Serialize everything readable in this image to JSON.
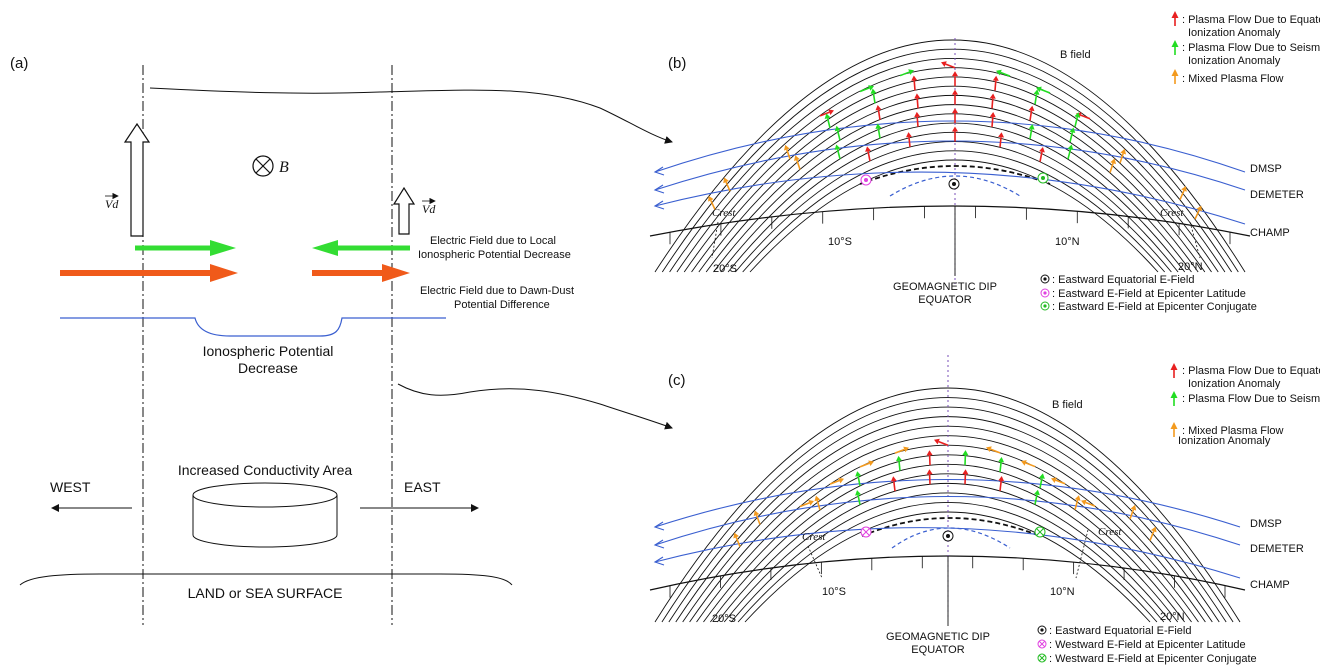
{
  "panel_a": {
    "label": "(a)",
    "b_symbol": "B",
    "vd_label": "Vd",
    "vd_label_small": "Vd",
    "efield_local_line1": "Electric Field due to Local",
    "efield_local_line2": "Ionospheric Potential Decrease",
    "efield_dawndusk_line1": "Electric Field due to Dawn-Dust",
    "efield_dawndusk_line2": "Potential Difference",
    "iono_line1": "Ionospheric Potential",
    "iono_line2": "Decrease",
    "conductivity": "Increased Conductivity Area",
    "west": "WEST",
    "east": "EAST",
    "surface": "LAND or SEA SURFACE",
    "colors": {
      "green": "#33dd33",
      "orange": "#f05a1a",
      "blue": "#3a5fd0"
    }
  },
  "panel_b": {
    "label": "(b)",
    "bfield": "B field",
    "legend": [
      {
        "color": "#e82020",
        "line1": ": Plasma Flow Due to Equatorial",
        "line2": "Ionization Anomaly"
      },
      {
        "color": "#22dd22",
        "line1": ": Plasma Flow Due to Seismic",
        "line2": "Ionization Anomaly"
      },
      {
        "color": "#f39a1e",
        "line1": ": Mixed Plasma Flow",
        "line2": ""
      }
    ],
    "orbits": [
      "DMSP",
      "DEMETER",
      "CHAMP"
    ],
    "crest_left": "Crest",
    "crest_right": "Crest",
    "lat_labels": [
      "20°S",
      "10°S",
      "10°N",
      "20°N"
    ],
    "equator_line1": "GEOMAGNETIC DIP",
    "equator_line2": "EQUATOR",
    "efield_legend": [
      {
        "kind": "dot",
        "color": "#111111",
        "text": ": Eastward Equatorial E-Field"
      },
      {
        "kind": "dot",
        "color": "#e040e0",
        "text": ": Eastward E-Field at Epicenter Latitude"
      },
      {
        "kind": "dot",
        "color": "#22bb22",
        "text": ": Eastward  E-Field at Epicenter Conjugate"
      }
    ]
  },
  "panel_c": {
    "label": "(c)",
    "bfield": "B field",
    "legend_l1": ": Plasma Flow Due to Equatorial",
    "legend_l1b": "Ionization Anomaly",
    "legend_l2": ": Plasma Flow Due to Seismic",
    "legend_l3": ": Mixed Plasma Flow",
    "legend_l3b": "Ionization Anomaly",
    "legend_colors": [
      "#e82020",
      "#22dd22",
      "#f39a1e"
    ],
    "orbits": [
      "DMSP",
      "DEMETER",
      "CHAMP"
    ],
    "crest_left": "Crest",
    "crest_right": "Crest",
    "lat_labels": [
      "20°S",
      "10°S",
      "10°N",
      "20°N"
    ],
    "equator_line1": "GEOMAGNETIC DIP",
    "equator_line2": "EQUATOR",
    "efield_legend": [
      {
        "kind": "dot",
        "color": "#111111",
        "text": ": Eastward Equatorial E-Field"
      },
      {
        "kind": "cross",
        "color": "#e040e0",
        "text": ": Westward E-Field at Epicenter Latitude"
      },
      {
        "kind": "cross",
        "color": "#22bb22",
        "text": ": Westward E-Field at Epicenter Conjugate"
      }
    ]
  }
}
